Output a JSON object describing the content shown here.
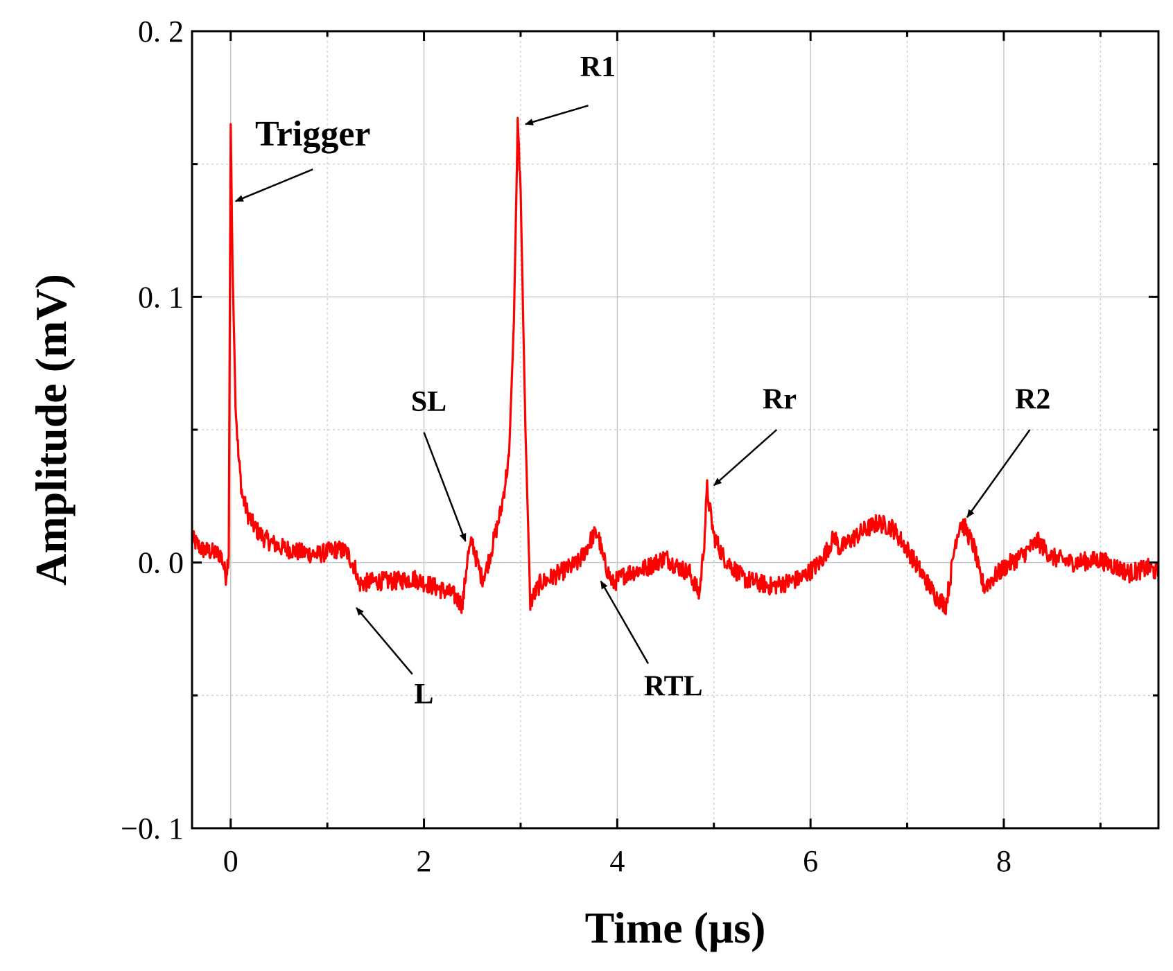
{
  "chart_data": {
    "type": "line",
    "title": "",
    "xlabel": "Time (μs)",
    "ylabel": "Amplitude (mV)",
    "xlim": [
      -0.4,
      9.6
    ],
    "ylim": [
      -0.1,
      0.2
    ],
    "x_ticks": [
      0,
      2,
      4,
      6,
      8
    ],
    "x_tick_labels": [
      "0",
      "2",
      "4",
      "6",
      "8"
    ],
    "y_ticks": [
      -0.1,
      0.0,
      0.1,
      0.2
    ],
    "y_tick_labels": [
      "−0. 1",
      "0. 0",
      "0. 1",
      "0. 2"
    ],
    "grid": true,
    "legend": "none",
    "series": [
      {
        "color": "#ff0000",
        "x": [
          -0.4,
          -0.3,
          -0.2,
          -0.1,
          -0.05,
          -0.02,
          0.0,
          0.02,
          0.05,
          0.08,
          0.12,
          0.18,
          0.25,
          0.35,
          0.5,
          0.7,
          0.9,
          1.1,
          1.2,
          1.3,
          1.32,
          1.5,
          1.7,
          1.9,
          2.1,
          2.3,
          2.4,
          2.45,
          2.5,
          2.55,
          2.6,
          2.65,
          2.72,
          2.8,
          2.88,
          2.93,
          2.97,
          3.0,
          3.05,
          3.1,
          3.2,
          3.4,
          3.6,
          3.75,
          3.8,
          3.85,
          3.95,
          4.1,
          4.3,
          4.5,
          4.6,
          4.75,
          4.85,
          4.9,
          4.93,
          4.95,
          5.0,
          5.1,
          5.3,
          5.6,
          5.9,
          6.1,
          6.25,
          6.3,
          6.4,
          6.55,
          6.7,
          6.85,
          7.0,
          7.2,
          7.3,
          7.4,
          7.45,
          7.5,
          7.55,
          7.6,
          7.7,
          7.75,
          7.8,
          8.0,
          8.2,
          8.35,
          8.5,
          8.7,
          9.0,
          9.3,
          9.5,
          9.6
        ],
        "y": [
          0.009,
          0.005,
          0.004,
          0.003,
          -0.005,
          0.003,
          0.165,
          0.11,
          0.06,
          0.04,
          0.025,
          0.018,
          0.013,
          0.009,
          0.006,
          0.004,
          0.003,
          0.005,
          0.004,
          -0.003,
          -0.008,
          -0.007,
          -0.007,
          -0.006,
          -0.009,
          -0.012,
          -0.016,
          0.002,
          0.008,
          0.0,
          -0.006,
          -0.002,
          0.008,
          0.02,
          0.04,
          0.09,
          0.165,
          0.14,
          0.05,
          -0.015,
          -0.008,
          -0.004,
          0.0,
          0.01,
          0.011,
          0.002,
          -0.008,
          -0.004,
          -0.002,
          0.002,
          -0.001,
          -0.004,
          -0.012,
          0.008,
          0.028,
          0.022,
          0.01,
          0.002,
          -0.006,
          -0.009,
          -0.006,
          0.0,
          0.01,
          0.005,
          0.008,
          0.012,
          0.015,
          0.013,
          0.005,
          -0.007,
          -0.013,
          -0.016,
          -0.005,
          0.008,
          0.015,
          0.013,
          0.005,
          -0.005,
          -0.009,
          -0.002,
          0.003,
          0.008,
          0.002,
          0.0,
          0.001,
          -0.004,
          -0.002,
          -0.004
        ]
      }
    ],
    "annotations": [
      {
        "text": "Trigger",
        "x": 0.85,
        "y": 0.157,
        "arrow_to_x": 0.05,
        "arrow_to_y": 0.136,
        "tail_x": 0.85,
        "tail_y": 0.148
      },
      {
        "text": "R1",
        "x": 3.8,
        "y": 0.183,
        "arrow_to_x": 3.05,
        "arrow_to_y": 0.165,
        "tail_x": 3.7,
        "tail_y": 0.172
      },
      {
        "text": "SL",
        "x": 2.05,
        "y": 0.057,
        "arrow_to_x": 2.43,
        "arrow_to_y": 0.008,
        "tail_x": 2.0,
        "tail_y": 0.049
      },
      {
        "text": "L",
        "x": 2.0,
        "y": -0.053,
        "arrow_to_x": 1.3,
        "arrow_to_y": -0.017,
        "tail_x": 1.88,
        "tail_y": -0.042
      },
      {
        "text": "RTL",
        "x": 4.58,
        "y": -0.05,
        "arrow_to_x": 3.83,
        "arrow_to_y": -0.007,
        "tail_x": 4.32,
        "tail_y": -0.038
      },
      {
        "text": "Rr",
        "x": 5.68,
        "y": 0.058,
        "arrow_to_x": 5.0,
        "arrow_to_y": 0.029,
        "tail_x": 5.65,
        "tail_y": 0.05
      },
      {
        "text": "R2",
        "x": 8.3,
        "y": 0.058,
        "arrow_to_x": 7.62,
        "arrow_to_y": 0.017,
        "tail_x": 8.27,
        "tail_y": 0.05
      }
    ]
  }
}
